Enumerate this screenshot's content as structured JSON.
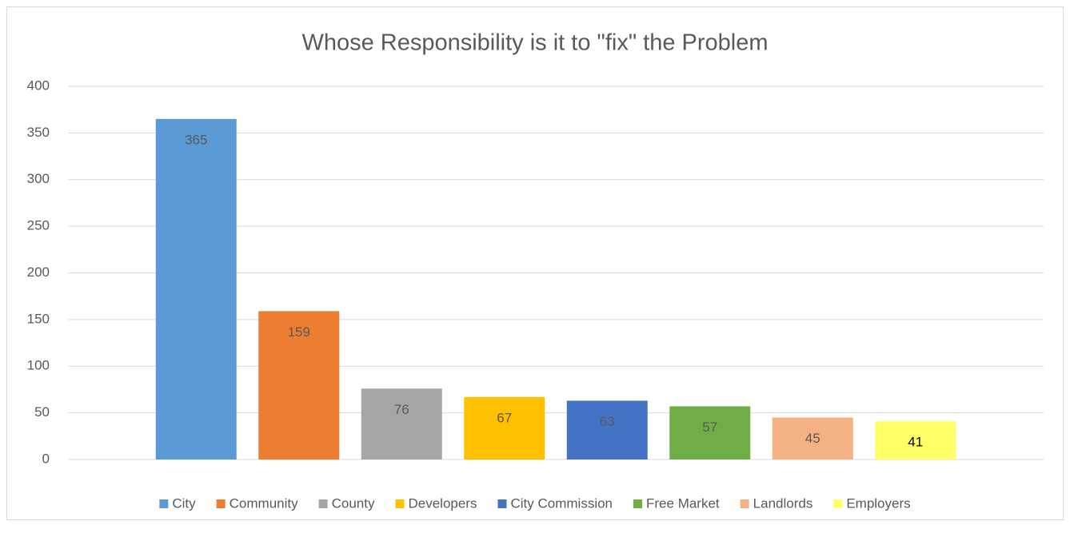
{
  "chart_data": {
    "type": "bar",
    "title": "Whose Responsibility is it to \"fix\" the Problem",
    "categories": [
      "City",
      "Community",
      "County",
      "Developers",
      "City Commission",
      "Free Market",
      "Landlords",
      "Employers"
    ],
    "values": [
      365,
      159,
      76,
      67,
      63,
      57,
      45,
      41
    ],
    "colors": [
      "#5b9bd5",
      "#ed7d31",
      "#a5a5a5",
      "#ffc000",
      "#4472c4",
      "#70ad47",
      "#f4b183",
      "#ffff66"
    ],
    "ylim": [
      0,
      400
    ],
    "yticks": [
      0,
      50,
      100,
      150,
      200,
      250,
      300,
      350,
      400
    ],
    "grid": true,
    "legend": "bottom"
  }
}
